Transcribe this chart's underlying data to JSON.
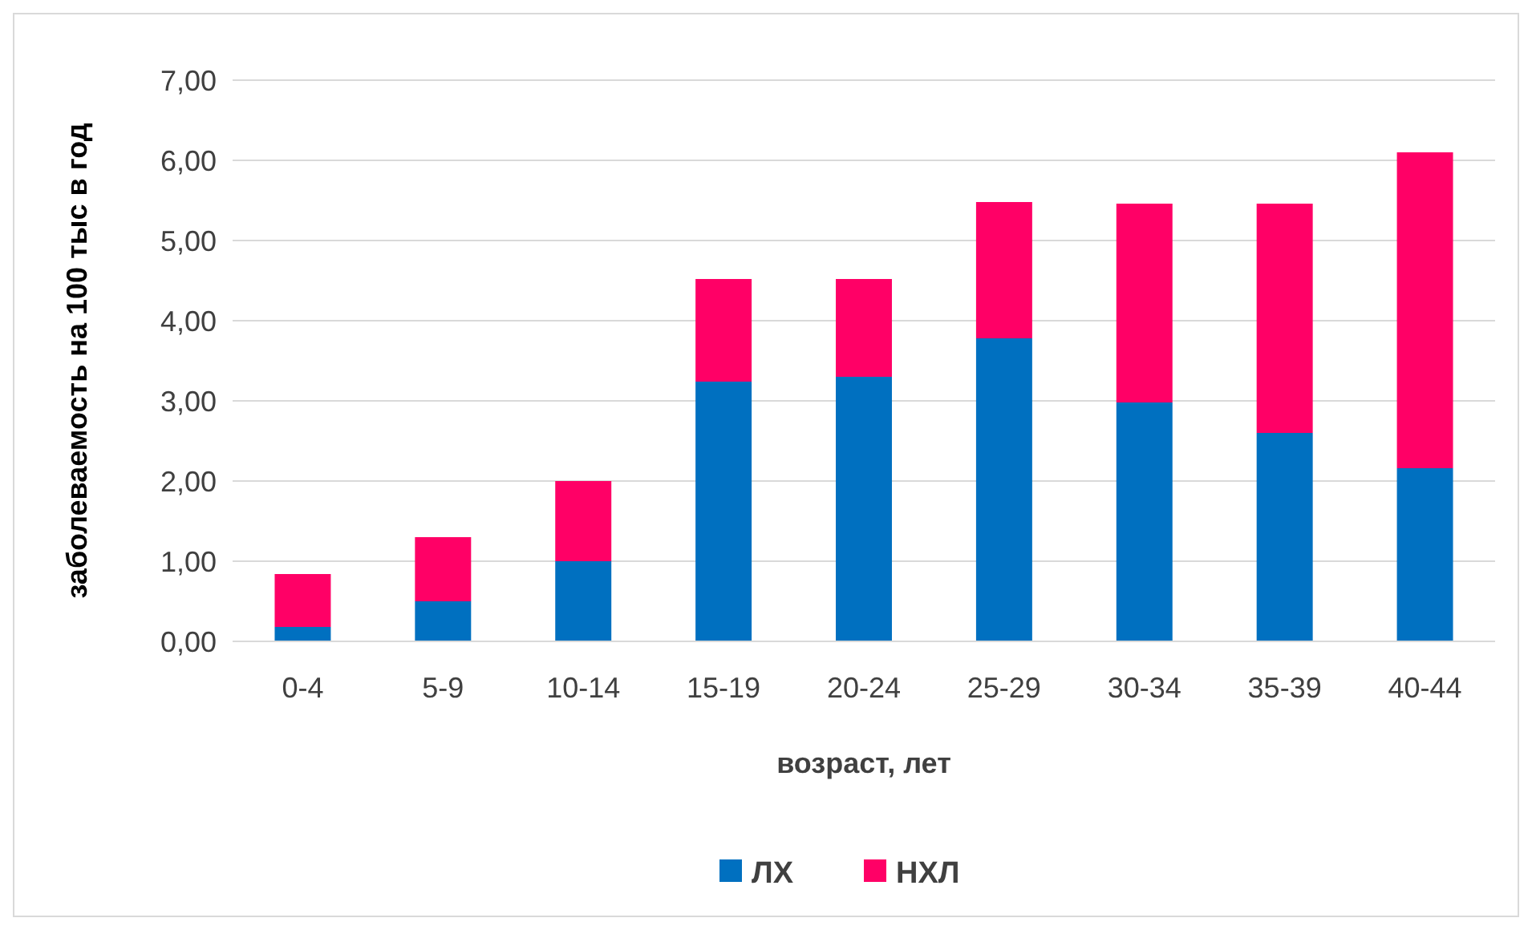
{
  "chart_data": {
    "type": "bar",
    "stacked": true,
    "xlabel": "возраст, лет",
    "ylabel": "заболеваемость на 100 тыс в год",
    "categories": [
      "0-4",
      "5-9",
      "10-14",
      "15-19",
      "20-24",
      "25-29",
      "30-34",
      "35-39",
      "40-44"
    ],
    "series": [
      {
        "name": "ЛХ",
        "color": "#0070c0",
        "values": [
          0.18,
          0.5,
          1.0,
          3.24,
          3.3,
          3.78,
          2.98,
          2.6,
          2.16
        ]
      },
      {
        "name": "НХЛ",
        "color": "#ff0066",
        "values": [
          0.66,
          0.8,
          1.0,
          1.28,
          1.22,
          1.7,
          2.48,
          2.86,
          3.94
        ]
      }
    ],
    "ylim": [
      0,
      7
    ],
    "yticks": [
      {
        "value": 0,
        "label": "0,00"
      },
      {
        "value": 1,
        "label": "1,00"
      },
      {
        "value": 2,
        "label": "2,00"
      },
      {
        "value": 3,
        "label": "3,00"
      },
      {
        "value": 4,
        "label": "4,00"
      },
      {
        "value": 5,
        "label": "5,00"
      },
      {
        "value": 6,
        "label": "6,00"
      },
      {
        "value": 7,
        "label": "7,00"
      }
    ],
    "grid": "y",
    "legend": "bottom"
  }
}
